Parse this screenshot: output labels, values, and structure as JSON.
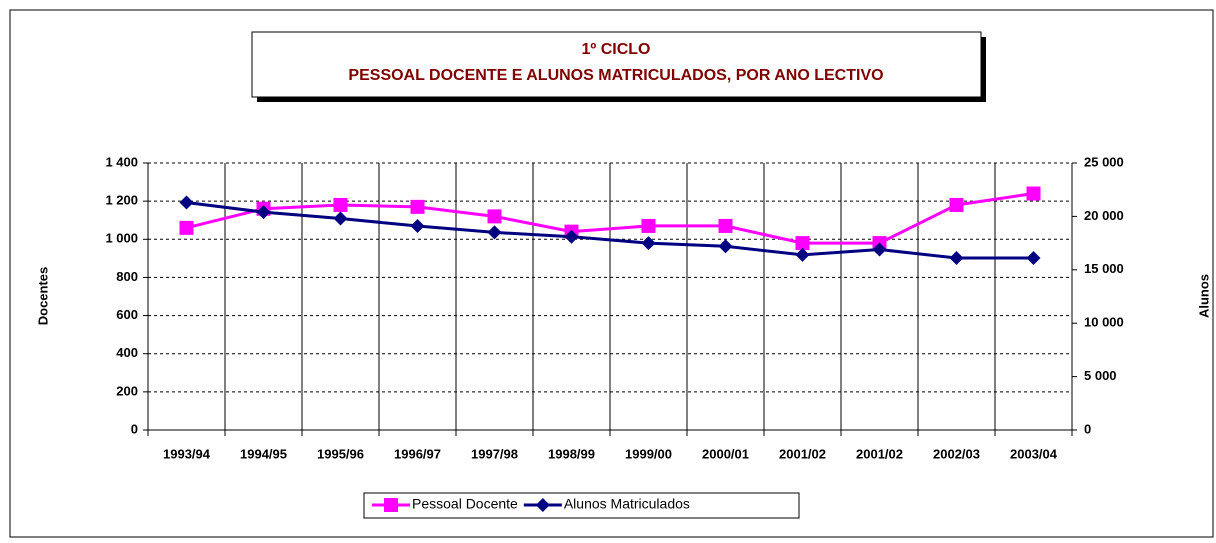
{
  "chart_data": {
    "type": "line",
    "title": [
      "1º CICLO",
      "PESSOAL DOCENTE E ALUNOS MATRICULADOS, POR ANO LECTIVO"
    ],
    "ylabel": "Docentes",
    "y2label": "Alunos",
    "categories": [
      "1993/94",
      "1994/95",
      "1995/96",
      "1996/97",
      "1997/98",
      "1998/99",
      "1999/00",
      "2000/01",
      "2001/02",
      "2001/02",
      "2002/03",
      "2003/04"
    ],
    "series": [
      {
        "name": "Pessoal Docente",
        "color": "#ff00ff",
        "marker": "square",
        "values": [
          1060,
          1160,
          1180,
          1170,
          1120,
          1040,
          1070,
          1070,
          980,
          980,
          1180,
          1240
        ]
      },
      {
        "name": "Alunos Matriculados",
        "color": "#000080",
        "marker": "diamond",
        "axis": "y2",
        "values": [
          21300,
          20400,
          19800,
          19100,
          18500,
          18100,
          17500,
          17200,
          16400,
          16900,
          16100,
          16100
        ]
      }
    ],
    "ylim": [
      0,
      1400
    ],
    "yticks": [
      0,
      200,
      400,
      600,
      800,
      {
        "value": 1000,
        "label": "1 000"
      },
      {
        "value": 1200,
        "label": "1 200"
      },
      {
        "value": 1400,
        "label": "1 400"
      }
    ],
    "y2lim": [
      0,
      25000
    ],
    "y2ticks": [
      0,
      {
        "value": 5000,
        "label": "5 000"
      },
      {
        "value": 10000,
        "label": "10 000"
      },
      {
        "value": 15000,
        "label": "15 000"
      },
      {
        "value": 20000,
        "label": "20 000"
      },
      {
        "value": 25000,
        "label": "25 000"
      }
    ],
    "grid": true,
    "legend": "bottom"
  }
}
